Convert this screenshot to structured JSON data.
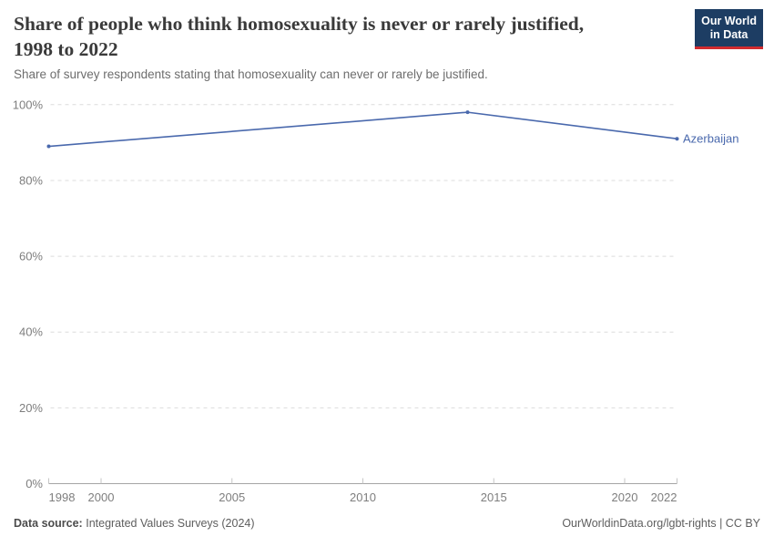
{
  "header": {
    "title_line1": "Share of people who think homosexuality is never or rarely justified,",
    "title_line2": "1998 to 2022",
    "subtitle": "Share of survey respondents stating that homosexuality can never or rarely be justified.",
    "logo": {
      "line1": "Our World",
      "line2": "in Data"
    }
  },
  "chart_data": {
    "type": "line",
    "title": "Share of people who think homosexuality is never or rarely justified, 1998 to 2022",
    "subtitle": "Share of survey respondents stating that homosexuality can never or rarely be justified.",
    "xlabel": "",
    "ylabel": "",
    "grid": true,
    "legend": "inline-end-of-line-label",
    "x": {
      "min": 1998,
      "max": 2022,
      "ticks": [
        {
          "value": 1998,
          "label": "1998"
        },
        {
          "value": 2000,
          "label": "2000"
        },
        {
          "value": 2005,
          "label": "2005"
        },
        {
          "value": 2010,
          "label": "2010"
        },
        {
          "value": 2015,
          "label": "2015"
        },
        {
          "value": 2020,
          "label": "2020"
        },
        {
          "value": 2022,
          "label": "2022"
        }
      ]
    },
    "y": {
      "min": 0,
      "max": 100,
      "ticks": [
        {
          "value": 0,
          "label": "0%"
        },
        {
          "value": 20,
          "label": "20%"
        },
        {
          "value": 40,
          "label": "40%"
        },
        {
          "value": 60,
          "label": "60%"
        },
        {
          "value": 80,
          "label": "80%"
        },
        {
          "value": 100,
          "label": "100%"
        }
      ]
    },
    "series": [
      {
        "name": "Azerbaijan",
        "color": "#4a69ad",
        "points": [
          {
            "year": 1998,
            "value": 89
          },
          {
            "year": 2014,
            "value": 98
          },
          {
            "year": 2022,
            "value": 91
          }
        ]
      }
    ]
  },
  "footer": {
    "source_label": "Data source:",
    "source_value": "Integrated Values Surveys (2024)",
    "credit": "OurWorldinData.org/lgbt-rights | CC BY"
  },
  "colors": {
    "accent_blue": "#4a69ad",
    "logo_navy": "#1d3d63",
    "logo_red": "#d12b2f",
    "gridline": "#dcdcdc",
    "axis_line": "#a5a5a5",
    "tick_mark": "#c6c6c6",
    "tick_label": "#7e7e7e"
  }
}
